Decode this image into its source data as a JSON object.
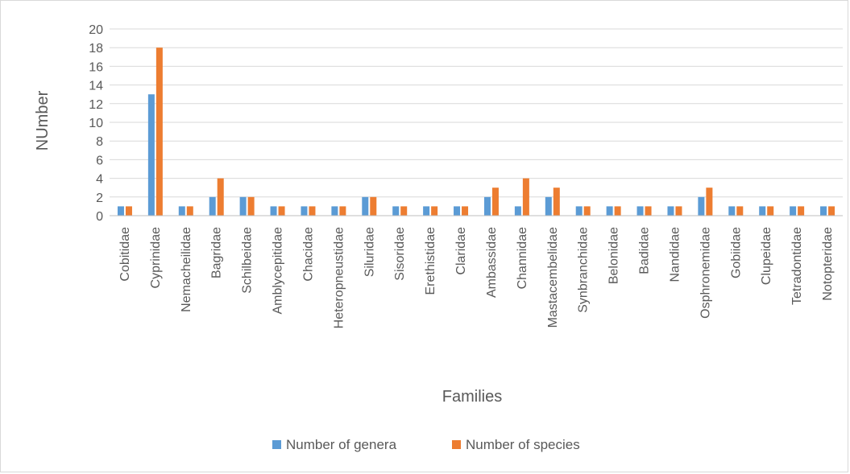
{
  "chart_data": {
    "type": "bar",
    "title": "",
    "xlabel": "Families",
    "ylabel": "NUmber",
    "ylim": [
      0,
      20
    ],
    "ytick_step": 2,
    "grid": true,
    "legend_position": "bottom",
    "categories": [
      "Cobitidae",
      "Cyprinidae",
      "Nemacheilidae",
      "Bagridae",
      "Schilbeidae",
      "Amblycepitidae",
      "Chacidae",
      "Heteropneustidae",
      "Siluridae",
      "Sisoridae",
      "Erethistidae",
      "Claridae",
      "Ambassidae",
      "Channidae",
      "Mastacembelidae",
      "Synbranchidae",
      "Belonidae",
      "Badidae",
      "Nandidae",
      "Osphronemidae",
      "Gobiidae",
      "Clupeidae",
      "Tetradontidae",
      "Notopteridae"
    ],
    "series": [
      {
        "name": "Number of genera",
        "color": "#5b9bd5",
        "values": [
          1,
          13,
          1,
          2,
          2,
          1,
          1,
          1,
          2,
          1,
          1,
          1,
          2,
          1,
          2,
          1,
          1,
          1,
          1,
          2,
          1,
          1,
          1,
          1
        ]
      },
      {
        "name": "Number of species",
        "color": "#ed7d31",
        "values": [
          1,
          18,
          1,
          4,
          2,
          1,
          1,
          1,
          2,
          1,
          1,
          1,
          3,
          4,
          3,
          1,
          1,
          1,
          1,
          3,
          1,
          1,
          1,
          1
        ]
      }
    ]
  }
}
